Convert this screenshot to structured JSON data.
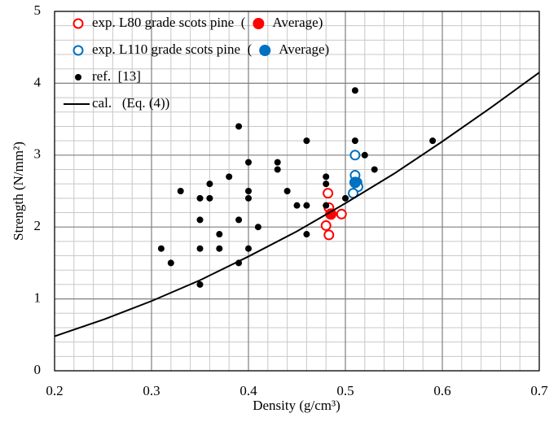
{
  "chart_data": {
    "type": "scatter",
    "x_label": "Density (g/cm³)",
    "y_label": "Strength (N/mm²)",
    "xlim": [
      0.2,
      0.7
    ],
    "xticks": [
      0.2,
      0.3,
      0.4,
      0.5,
      0.6,
      0.7
    ],
    "ylim": [
      0,
      5
    ],
    "yticks": [
      0,
      1,
      2,
      3,
      4,
      5
    ],
    "grid": true,
    "legend": "upper left",
    "series": [
      {
        "name": "exp. L80 grade scots pine  (",
        "color": "#ff0000",
        "marker": "open",
        "x": [
          0.482,
          0.483,
          0.48,
          0.483,
          0.496
        ],
        "values": [
          2.47,
          2.27,
          2.02,
          1.89,
          2.18
        ]
      },
      {
        "name": "Average)",
        "color": "#ff0000",
        "marker": "filled",
        "x": [
          0.485
        ],
        "values": [
          2.18
        ]
      },
      {
        "name": "exp. L110 grade scots pine  (",
        "color": "#0070c0",
        "marker": "open",
        "x": [
          0.51,
          0.51,
          0.512,
          0.513,
          0.508
        ],
        "values": [
          3.0,
          2.72,
          2.62,
          2.56,
          2.47
        ]
      },
      {
        "name": "Average)",
        "color": "#0070c0",
        "marker": "filled",
        "x": [
          0.51
        ],
        "values": [
          2.62
        ]
      },
      {
        "name": "ref.  [13]",
        "color": "#000000",
        "marker": "dot",
        "x": [
          0.35,
          0.31,
          0.32,
          0.33,
          0.35,
          0.35,
          0.35,
          0.36,
          0.36,
          0.37,
          0.37,
          0.38,
          0.39,
          0.39,
          0.39,
          0.4,
          0.4,
          0.4,
          0.4,
          0.41,
          0.43,
          0.43,
          0.44,
          0.45,
          0.46,
          0.46,
          0.46,
          0.48,
          0.48,
          0.48,
          0.5,
          0.51,
          0.51,
          0.52,
          0.53,
          0.59
        ],
        "values": [
          1.2,
          1.7,
          1.5,
          2.5,
          2.4,
          2.1,
          1.7,
          2.6,
          2.4,
          1.9,
          1.7,
          2.7,
          3.4,
          2.1,
          1.5,
          2.9,
          2.5,
          2.4,
          1.7,
          2.0,
          2.9,
          2.8,
          2.5,
          2.3,
          3.2,
          2.3,
          1.9,
          2.7,
          2.6,
          2.3,
          2.4,
          3.9,
          3.2,
          3.0,
          2.8,
          3.2
        ]
      },
      {
        "name": "cal.   (Eq. (4))",
        "color": "#000000",
        "marker": "line",
        "x": [
          0.2,
          0.25,
          0.3,
          0.35,
          0.4,
          0.45,
          0.5,
          0.55,
          0.6,
          0.65,
          0.7
        ],
        "values": [
          0.48,
          0.71,
          0.97,
          1.26,
          1.59,
          1.94,
          2.33,
          2.74,
          3.19,
          3.66,
          4.15
        ]
      }
    ]
  }
}
